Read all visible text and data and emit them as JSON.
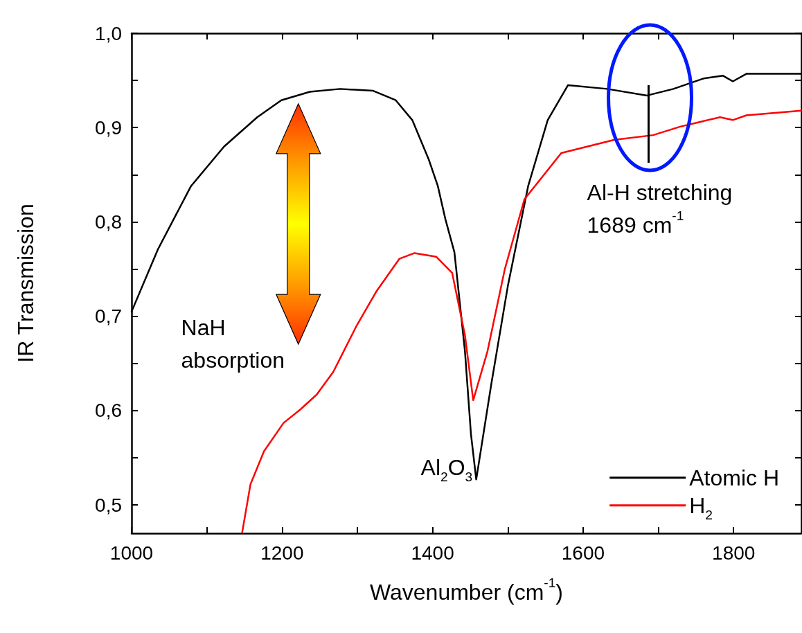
{
  "chart_data": {
    "type": "line",
    "xlabel": "Wavenumber (cm$^{-1}$)",
    "ylabel": "IR Transmission",
    "xlim": [
      1000,
      1890
    ],
    "xticks": [
      1000,
      {
        "value": 1100,
        "label": null
      },
      1200,
      {
        "value": 1300,
        "label": null
      },
      1400,
      {
        "value": 1500,
        "label": null
      },
      1600,
      {
        "value": 1700,
        "label": null
      },
      1800
    ],
    "ylim": [
      0.47,
      1.0
    ],
    "yticks": [
      {
        "value": 0.5,
        "label": "0,5"
      },
      {
        "value": 0.55,
        "label": null
      },
      {
        "value": 0.6,
        "label": "0,6"
      },
      {
        "value": 0.65,
        "label": null
      },
      {
        "value": 0.7,
        "label": "0,7"
      },
      {
        "value": 0.75,
        "label": null
      },
      {
        "value": 0.8,
        "label": "0,8"
      },
      {
        "value": 0.85,
        "label": null
      },
      {
        "value": 0.9,
        "label": "0,9"
      },
      {
        "value": 0.95,
        "label": null
      },
      {
        "value": 1.0,
        "label": "1,0"
      }
    ],
    "grid": false,
    "legend": "bottom right",
    "marker": "none",
    "line_style": "solid",
    "series": [
      {
        "name": "Atomic H",
        "color": "#000000",
        "x": [
          1000,
          1035,
          1079,
          1123,
          1167,
          1199,
          1237,
          1277,
          1321,
          1351,
          1373,
          1395,
          1407,
          1417,
          1429,
          1443,
          1451,
          1458,
          1478,
          1500,
          1527,
          1553,
          1580,
          1632,
          1685,
          1720,
          1760,
          1786,
          1799,
          1817,
          1890
        ],
        "values": [
          0.705,
          0.771,
          0.838,
          0.88,
          0.911,
          0.929,
          0.938,
          0.941,
          0.939,
          0.929,
          0.908,
          0.866,
          0.838,
          0.803,
          0.768,
          0.663,
          0.575,
          0.527,
          0.628,
          0.732,
          0.838,
          0.908,
          0.945,
          0.941,
          0.934,
          0.941,
          0.952,
          0.955,
          0.949,
          0.957,
          0.957
        ]
      },
      {
        "name": "H$_{2}$",
        "color": "#ff0000",
        "x": [
          1147,
          1158,
          1176,
          1202,
          1224,
          1246,
          1268,
          1299,
          1325,
          1356,
          1376,
          1405,
          1426,
          1443,
          1454,
          1473,
          1496,
          1522,
          1571,
          1641,
          1693,
          1729,
          1782,
          1799,
          1817,
          1890
        ],
        "values": [
          0.471,
          0.522,
          0.557,
          0.587,
          0.601,
          0.617,
          0.641,
          0.69,
          0.726,
          0.761,
          0.767,
          0.763,
          0.746,
          0.68,
          0.611,
          0.663,
          0.75,
          0.824,
          0.873,
          0.887,
          0.892,
          0.901,
          0.911,
          0.908,
          0.913,
          0.918
        ]
      }
    ],
    "annotations": [
      "NaH\nabsorption",
      {
        "text": "Al$_{2}$O$_{3}$",
        "x": 1458,
        "y": 0.527
      },
      "Al-H stretching\n1689 cm$^{-1}$"
    ]
  }
}
